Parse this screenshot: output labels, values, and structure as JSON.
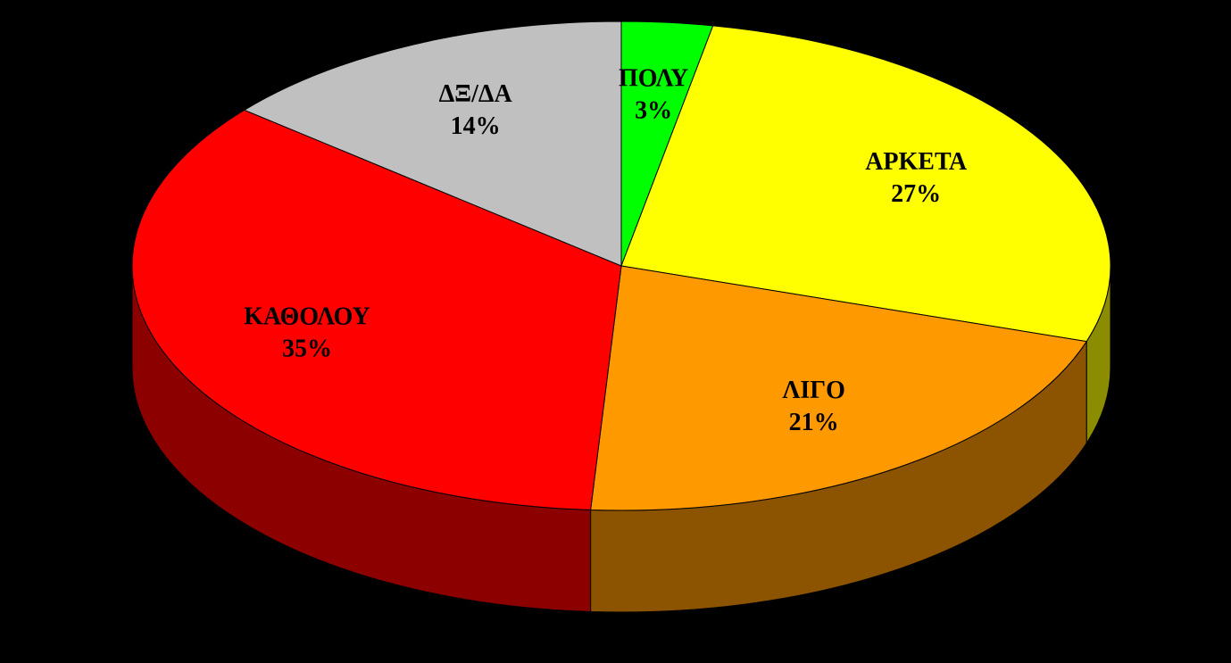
{
  "chart_data": {
    "type": "pie",
    "categories": [
      "ΠΟΛΥ",
      "ΑΡΚΕΤΑ",
      "ΛΙΓΟ",
      "ΚΑΘΟΛΟΥ",
      "ΔΞ/ΔΑ"
    ],
    "values": [
      3,
      27,
      21,
      35,
      14
    ],
    "value_labels": [
      "3%",
      "27%",
      "21%",
      "35%",
      "14%"
    ],
    "colors": [
      "#00ff00",
      "#ffff00",
      "#ff9900",
      "#ff0000",
      "#c0c0c0"
    ]
  }
}
